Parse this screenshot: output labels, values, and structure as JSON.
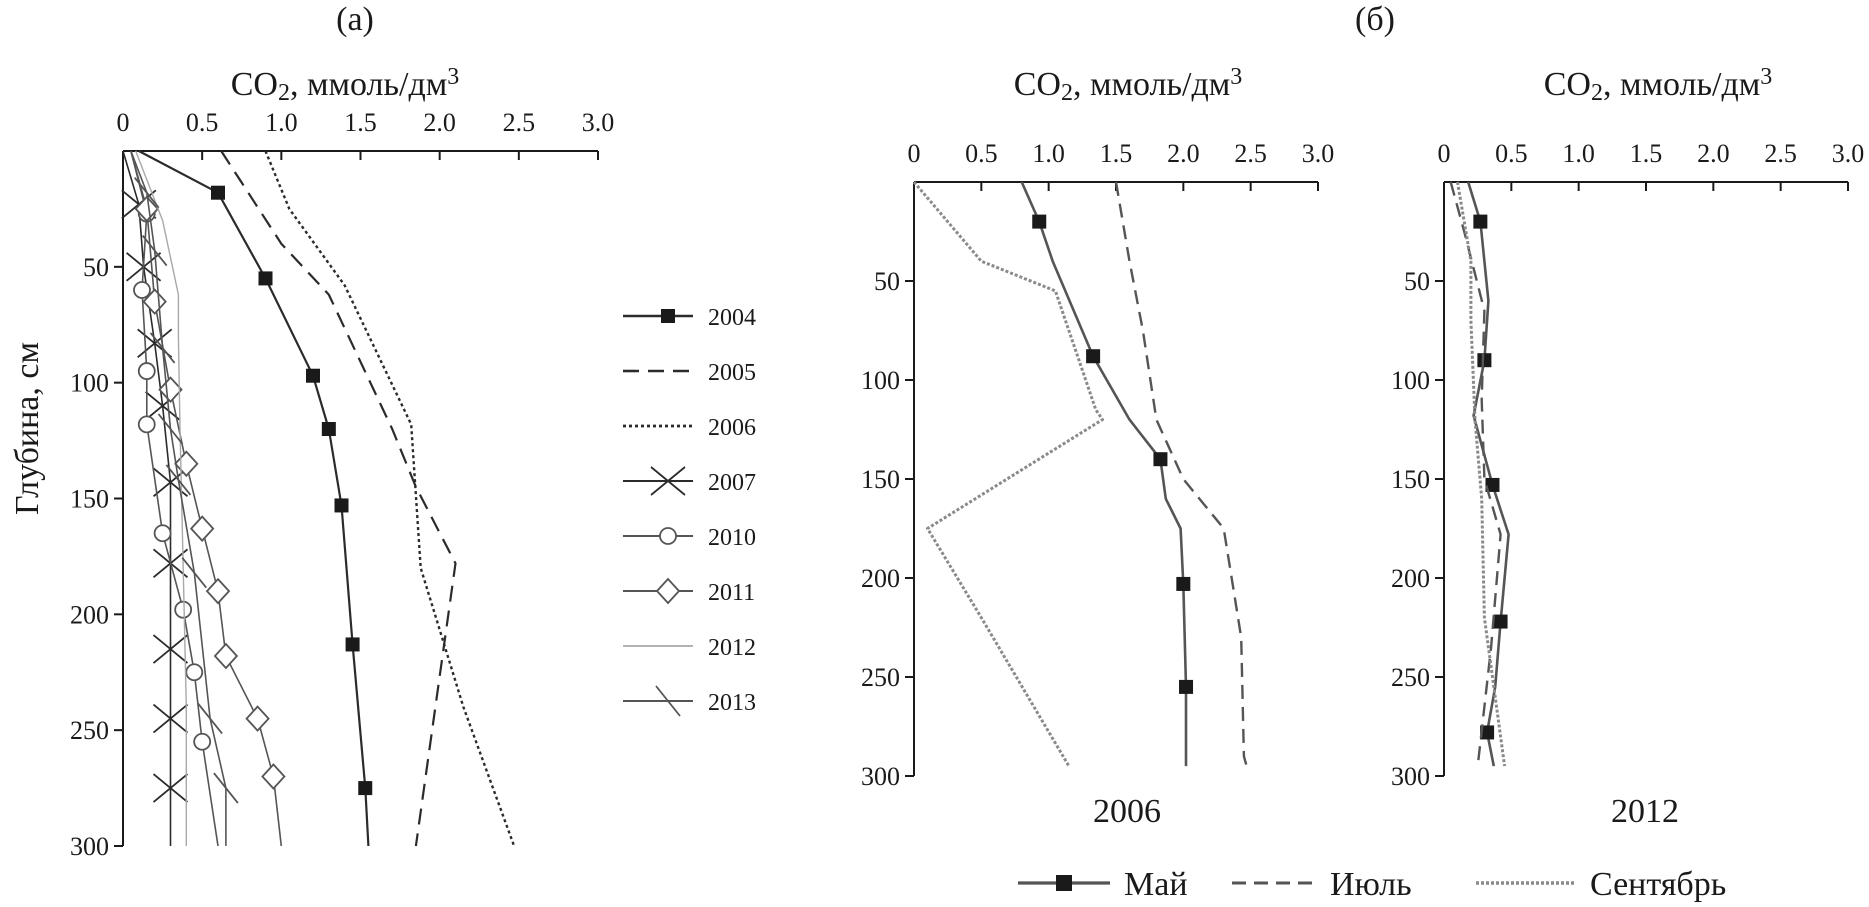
{
  "figure": {
    "panel_a_label": "(а)",
    "panel_b_label": "(б)"
  },
  "colors": {
    "ink": "#1a1a1a",
    "dark": "#2b2b2b",
    "mid": "#555555",
    "light": "#8a8a8a",
    "lighter": "#a8a8a8"
  },
  "chart_data": [
    {
      "type": "line",
      "panel": "(а)",
      "title": "CO2, ммоль/дм3",
      "xlabel": "CO2, ммоль/дм3",
      "ylabel": "Глубина, см",
      "x_ticks": [
        "0",
        "0.5",
        "1.0",
        "1.5",
        "2.0",
        "2.5",
        "3.0"
      ],
      "y_ticks": [
        "50",
        "100",
        "150",
        "200",
        "250",
        "300"
      ],
      "xlim": [
        0,
        3.0
      ],
      "ylim": [
        0,
        300
      ],
      "y_inverted": true,
      "legend_position": "right",
      "series": [
        {
          "name": "2004",
          "style": "solid-square",
          "points": [
            [
              0.1,
              0
            ],
            [
              0.6,
              18
            ],
            [
              0.9,
              55
            ],
            [
              1.2,
              97
            ],
            [
              1.3,
              120
            ],
            [
              1.38,
              153
            ],
            [
              1.45,
              213
            ],
            [
              1.53,
              275
            ],
            [
              1.55,
              300
            ]
          ]
        },
        {
          "name": "2005",
          "style": "dashed",
          "points": [
            [
              0.62,
              0
            ],
            [
              1.0,
              40
            ],
            [
              1.3,
              62
            ],
            [
              1.7,
              120
            ],
            [
              1.85,
              145
            ],
            [
              2.1,
              178
            ],
            [
              1.85,
              300
            ]
          ]
        },
        {
          "name": "2006",
          "style": "dotted",
          "points": [
            [
              0.9,
              0
            ],
            [
              1.05,
              25
            ],
            [
              1.4,
              58
            ],
            [
              1.82,
              118
            ],
            [
              1.88,
              180
            ],
            [
              2.15,
              240
            ],
            [
              2.47,
              300
            ]
          ]
        },
        {
          "name": "2007",
          "style": "x-marker",
          "points": [
            [
              0.0,
              0
            ],
            [
              0.1,
              23
            ],
            [
              0.13,
              50
            ],
            [
              0.2,
              83
            ],
            [
              0.25,
              110
            ],
            [
              0.3,
              143
            ],
            [
              0.3,
              178
            ],
            [
              0.3,
              215
            ],
            [
              0.3,
              245
            ],
            [
              0.3,
              275
            ],
            [
              0.3,
              300
            ]
          ]
        },
        {
          "name": "2010",
          "style": "circle-marker",
          "points": [
            [
              0.05,
              0
            ],
            [
              0.15,
              27
            ],
            [
              0.12,
              60
            ],
            [
              0.15,
              95
            ],
            [
              0.15,
              118
            ],
            [
              0.25,
              165
            ],
            [
              0.38,
              198
            ],
            [
              0.45,
              225
            ],
            [
              0.5,
              255
            ],
            [
              0.6,
              300
            ]
          ]
        },
        {
          "name": "2011",
          "style": "diamond-marker",
          "points": [
            [
              0.05,
              0
            ],
            [
              0.15,
              25
            ],
            [
              0.2,
              65
            ],
            [
              0.3,
              103
            ],
            [
              0.4,
              135
            ],
            [
              0.5,
              163
            ],
            [
              0.6,
              190
            ],
            [
              0.65,
              218
            ],
            [
              0.85,
              245
            ],
            [
              0.95,
              270
            ],
            [
              1.0,
              300
            ]
          ]
        },
        {
          "name": "2012",
          "style": "thin-light",
          "points": [
            [
              0.08,
              0
            ],
            [
              0.25,
              30
            ],
            [
              0.35,
              62
            ],
            [
              0.35,
              80
            ],
            [
              0.36,
              120
            ],
            [
              0.38,
              180
            ],
            [
              0.4,
              240
            ],
            [
              0.4,
              300
            ]
          ]
        },
        {
          "name": "2013",
          "style": "slash-marker",
          "points": [
            [
              0.05,
              0
            ],
            [
              0.15,
              18
            ],
            [
              0.2,
              43
            ],
            [
              0.25,
              85
            ],
            [
              0.3,
              120
            ],
            [
              0.35,
              142
            ],
            [
              0.45,
              182
            ],
            [
              0.55,
              245
            ],
            [
              0.65,
              275
            ],
            [
              0.65,
              300
            ]
          ]
        }
      ]
    },
    {
      "type": "line",
      "panel": "(б)",
      "title": "CO2, ммоль/дм3",
      "caption": "2006",
      "xlabel": "CO2, ммоль/дм3",
      "x_ticks": [
        "0",
        "0.5",
        "1.0",
        "1.5",
        "2.0",
        "2.5",
        "3.0"
      ],
      "y_ticks": [
        "50",
        "100",
        "150",
        "200",
        "250",
        "300"
      ],
      "xlim": [
        0,
        3.0
      ],
      "ylim": [
        0,
        300
      ],
      "y_inverted": true,
      "series": [
        {
          "name": "Май",
          "style": "solid-square",
          "points": [
            [
              0.8,
              0
            ],
            [
              0.93,
              20
            ],
            [
              1.03,
              40
            ],
            [
              1.33,
              88
            ],
            [
              1.6,
              120
            ],
            [
              1.83,
              140
            ],
            [
              1.87,
              160
            ],
            [
              1.98,
              175
            ],
            [
              2.0,
              203
            ],
            [
              2.02,
              255
            ],
            [
              2.02,
              295
            ]
          ],
          "markers": [
            [
              0.93,
              20
            ],
            [
              1.33,
              88
            ],
            [
              1.83,
              140
            ],
            [
              2.0,
              203
            ],
            [
              2.02,
              255
            ]
          ]
        },
        {
          "name": "Июль",
          "style": "dashed",
          "points": [
            [
              1.5,
              0
            ],
            [
              1.6,
              40
            ],
            [
              1.7,
              75
            ],
            [
              1.8,
              120
            ],
            [
              2.0,
              150
            ],
            [
              2.3,
              175
            ],
            [
              2.43,
              230
            ],
            [
              2.45,
              290
            ],
            [
              2.47,
              295
            ]
          ]
        },
        {
          "name": "Сентябрь",
          "style": "dotted",
          "points": [
            [
              0.0,
              0
            ],
            [
              0.5,
              40
            ],
            [
              1.05,
              55
            ],
            [
              1.35,
              115
            ],
            [
              1.4,
              120
            ],
            [
              0.1,
              175
            ],
            [
              0.5,
              220
            ],
            [
              1.15,
              295
            ]
          ]
        }
      ]
    },
    {
      "type": "line",
      "panel": "(б)",
      "title": "CO2, ммоль/дм3",
      "caption": "2012",
      "xlabel": "CO2, ммоль/дм3",
      "x_ticks": [
        "0",
        "0.5",
        "1.0",
        "1.5",
        "2.0",
        "2.5",
        "3.0"
      ],
      "y_ticks": [
        "50",
        "100",
        "150",
        "200",
        "250",
        "300"
      ],
      "xlim": [
        0,
        3.0
      ],
      "ylim": [
        0,
        300
      ],
      "y_inverted": true,
      "series": [
        {
          "name": "Май",
          "style": "solid-square",
          "points": [
            [
              0.18,
              0
            ],
            [
              0.27,
              20
            ],
            [
              0.33,
              60
            ],
            [
              0.3,
              90
            ],
            [
              0.22,
              118
            ],
            [
              0.36,
              153
            ],
            [
              0.48,
              178
            ],
            [
              0.42,
              222
            ],
            [
              0.38,
              255
            ],
            [
              0.32,
              278
            ],
            [
              0.37,
              295
            ]
          ],
          "markers": [
            [
              0.27,
              20
            ],
            [
              0.3,
              90
            ],
            [
              0.36,
              153
            ],
            [
              0.42,
              222
            ],
            [
              0.32,
              278
            ]
          ]
        },
        {
          "name": "Июль",
          "style": "dashed",
          "points": [
            [
              0.05,
              0
            ],
            [
              0.15,
              25
            ],
            [
              0.3,
              65
            ],
            [
              0.28,
              110
            ],
            [
              0.3,
              150
            ],
            [
              0.42,
              178
            ],
            [
              0.35,
              235
            ],
            [
              0.25,
              295
            ]
          ]
        },
        {
          "name": "Сентябрь",
          "style": "dotted",
          "points": [
            [
              0.1,
              0
            ],
            [
              0.2,
              40
            ],
            [
              0.2,
              70
            ],
            [
              0.23,
              120
            ],
            [
              0.28,
              160
            ],
            [
              0.3,
              220
            ],
            [
              0.45,
              295
            ]
          ]
        }
      ]
    }
  ],
  "legend_b": [
    "Май",
    "Июль",
    "Сентябрь"
  ]
}
